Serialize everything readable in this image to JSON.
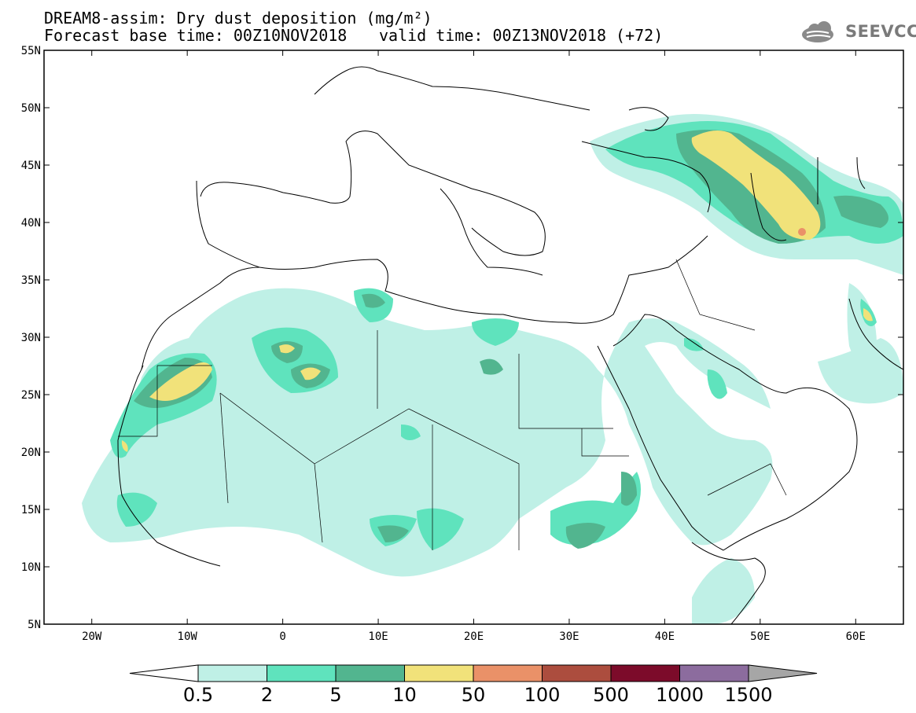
{
  "header": {
    "title_line1": "DREAM8-assim: Dry dust deposition (mg/m²)",
    "title_line2": "Forecast base time: 00Z10NOV2018",
    "title_valid": "valid time: 00Z13NOV2018 (+72)",
    "logo_text": "SEEVCCC",
    "logo_icon": "cloud-icon"
  },
  "map": {
    "lon_range": [
      -25,
      65
    ],
    "lat_range": [
      5,
      55
    ],
    "lon_ticks": [
      "20W",
      "10W",
      "0",
      "10E",
      "20E",
      "30E",
      "40E",
      "50E",
      "60E"
    ],
    "lat_ticks": [
      "5N",
      "10N",
      "15N",
      "20N",
      "25N",
      "30N",
      "35N",
      "40N",
      "45N",
      "50N",
      "55N"
    ],
    "lon_tick_values": [
      -20,
      -10,
      0,
      10,
      20,
      30,
      40,
      50,
      60
    ],
    "lat_tick_values": [
      5,
      10,
      15,
      20,
      25,
      30,
      35,
      40,
      45,
      50,
      55
    ]
  },
  "colorbar": {
    "labels": [
      "0.5",
      "2",
      "5",
      "10",
      "50",
      "100",
      "500",
      "1000",
      "1500"
    ],
    "colors": [
      "#bff0e6",
      "#5fe3bd",
      "#52b58f",
      "#f1e27a",
      "#ea9168",
      "#ac4d3e",
      "#7c0b2a",
      "#8c6c9e"
    ],
    "under_color": "#ffffff",
    "over_color": "#a6a6a6"
  }
}
